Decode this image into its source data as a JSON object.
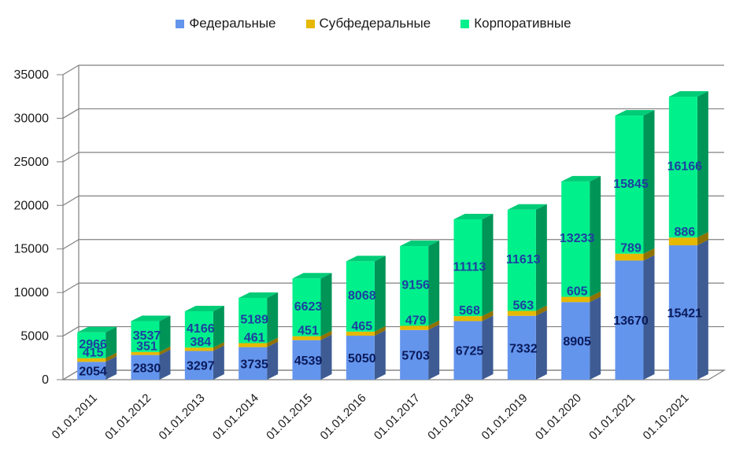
{
  "chart_data": {
    "type": "bar",
    "stacked": true,
    "three_d": true,
    "title": "",
    "xlabel": "",
    "ylabel": "",
    "ylim": [
      0,
      35000
    ],
    "yticks": [
      0,
      5000,
      10000,
      15000,
      20000,
      25000,
      30000,
      35000
    ],
    "grid": true,
    "legend_position": "top",
    "categories": [
      "01.01.2011",
      "01.01.2012",
      "01.01.2013",
      "01.01.2014",
      "01.01.2015",
      "01.01.2016",
      "01.01.2017",
      "01.01.2018",
      "01.01.2019",
      "01.01.2020",
      "01.01.2021",
      "01.10.2021"
    ],
    "series": [
      {
        "name": "Федеральные",
        "color": "#6495ED",
        "values": [
          2054,
          2830,
          3297,
          3735,
          4539,
          5050,
          5703,
          6725,
          7332,
          8905,
          13670,
          15421
        ]
      },
      {
        "name": "Субфедеральные",
        "color": "#E6B800",
        "values": [
          415,
          351,
          384,
          461,
          451,
          465,
          479,
          568,
          563,
          605,
          789,
          886
        ]
      },
      {
        "name": "Корпоративные",
        "color": "#00F08C",
        "values": [
          2966,
          3537,
          4166,
          5189,
          6623,
          8068,
          9156,
          11113,
          11613,
          13233,
          15845,
          16166
        ]
      }
    ]
  }
}
